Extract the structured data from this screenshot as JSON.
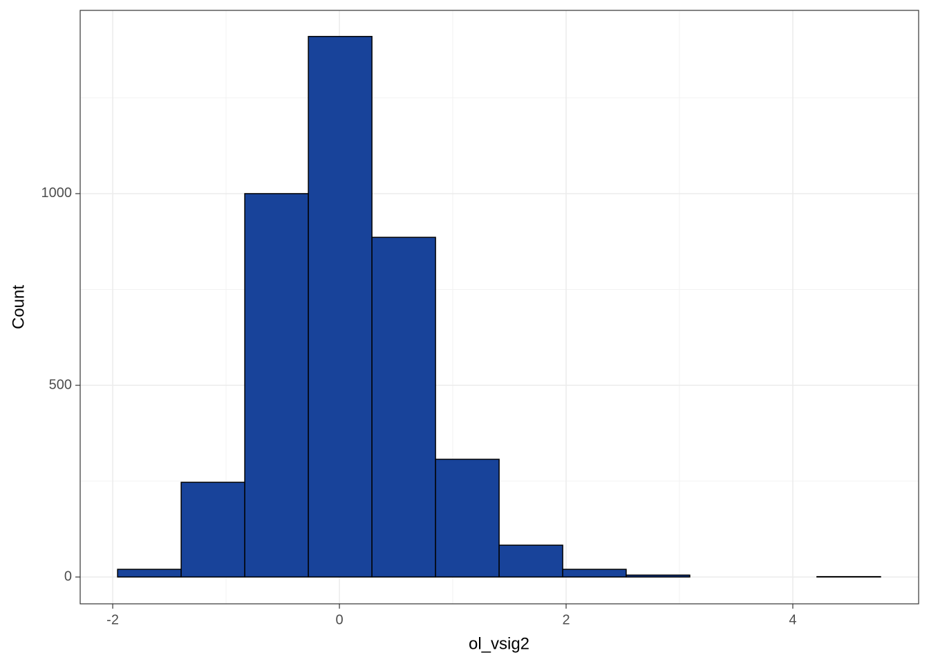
{
  "chart_data": {
    "type": "histogram",
    "x_label": "ol_vsig2",
    "y_label": "Count",
    "bins": [
      -1.957,
      -1.396,
      -0.835,
      -0.274,
      0.287,
      0.848,
      1.409,
      1.97,
      2.53,
      3.091,
      3.652,
      4.213,
      4.774
    ],
    "counts": [
      20,
      247,
      1000,
      1410,
      886,
      307,
      83,
      20,
      5,
      0,
      0,
      1
    ],
    "color": "#18439a",
    "edge_color": "#000000",
    "xlim": [
      -2.287,
      5.11
    ],
    "xticks": [
      -2,
      0,
      2,
      4
    ],
    "minor_xticks": [
      -1,
      1,
      3
    ],
    "ylim": [
      -70,
      1478
    ],
    "yticks": [
      0,
      500,
      1000
    ],
    "minor_yticks": [
      250,
      750,
      1250
    ],
    "grid": true
  }
}
